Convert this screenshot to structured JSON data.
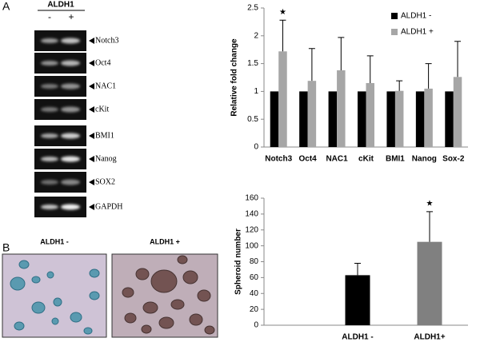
{
  "panel_labels": [
    "A",
    "B"
  ],
  "gel": {
    "title": "ALDH1",
    "lanes": [
      "-",
      "+"
    ],
    "bands": [
      "Notch3",
      "Oct4",
      "NAC1",
      "cKit",
      "BMI1",
      "Nanog",
      "SOX2",
      "GAPDH"
    ]
  },
  "micrographs": {
    "titles": [
      "ALDH1 -",
      "ALDH1 +"
    ]
  },
  "chart_data": [
    {
      "type": "bar",
      "ylabel": "Relative fold change",
      "categories": [
        "Notch3",
        "Oct4",
        "NAC1",
        "cKit",
        "BMI1",
        "Nanog",
        "Sox-2"
      ],
      "series": [
        {
          "name": "ALDH1 -",
          "color": "#000000",
          "values": [
            1,
            1,
            1,
            1,
            1,
            1,
            1
          ]
        },
        {
          "name": "ALDH1 +",
          "color": "#a6a6a6",
          "values": [
            1.72,
            1.19,
            1.38,
            1.15,
            1.01,
            1.05,
            1.26
          ],
          "errors": [
            0.56,
            0.58,
            0.59,
            0.49,
            0.18,
            0.45,
            0.64
          ]
        }
      ],
      "ylim": [
        0,
        2.5
      ],
      "yticks": [
        0,
        0.5,
        1,
        1.5,
        2,
        2.5
      ],
      "legend": "upper-right",
      "annotations": [
        {
          "text": "★",
          "x": "Notch3"
        }
      ]
    },
    {
      "type": "bar",
      "ylabel": "Spheroid number",
      "categories": [
        "ALDH1 -",
        "ALDH1+"
      ],
      "values": [
        63,
        105
      ],
      "errors": [
        15,
        38
      ],
      "colors": [
        "#000000",
        "#808080"
      ],
      "ylim": [
        0,
        160
      ],
      "yticks": [
        0,
        20,
        40,
        60,
        80,
        100,
        120,
        140,
        160
      ],
      "annotations": [
        {
          "text": "★",
          "x": "ALDH1+"
        }
      ]
    }
  ]
}
